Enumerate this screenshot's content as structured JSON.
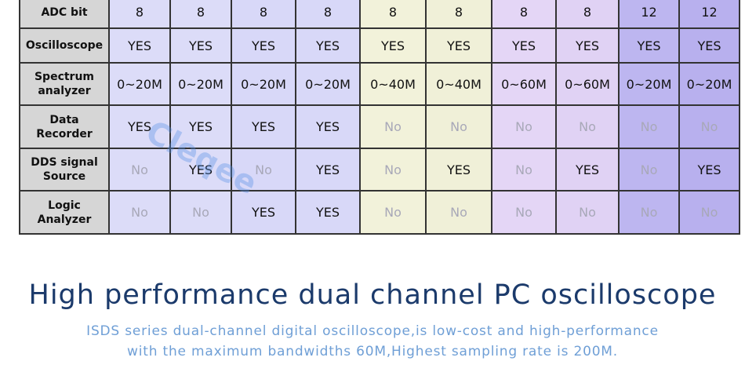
{
  "table": {
    "rows": [
      [
        "ADC bit",
        "8",
        "8",
        "8",
        "8",
        "8",
        "8",
        "8",
        "8",
        "12",
        "12"
      ],
      [
        "Oscilloscope",
        "YES",
        "YES",
        "YES",
        "YES",
        "YES",
        "YES",
        "YES",
        "YES",
        "YES",
        "YES"
      ],
      [
        "Spectrum analyzer",
        "0~20M",
        "0~20M",
        "0~20M",
        "0~20M",
        "0~40M",
        "0~40M",
        "0~60M",
        "0~60M",
        "0~20M",
        "0~20M"
      ],
      [
        "Data Recorder",
        "YES",
        "YES",
        "YES",
        "YES",
        "No",
        "No",
        "No",
        "No",
        "No",
        "No"
      ],
      [
        "DDS signal Source",
        "No",
        "YES",
        "No",
        "YES",
        "No",
        "YES",
        "No",
        "YES",
        "No",
        "YES"
      ],
      [
        "Logic Analyzer",
        "No",
        "No",
        "YES",
        "YES",
        "No",
        "No",
        "No",
        "No",
        "No",
        "No"
      ]
    ]
  },
  "watermark": "Cleqee",
  "title": "High performance dual channel PC oscilloscope",
  "subtitle": [
    "ISDS series dual-channel digital oscilloscope,is low-cost and high-performance",
    "with the maximum bandwidths 60M,Highest sampling rate is 200M."
  ]
}
